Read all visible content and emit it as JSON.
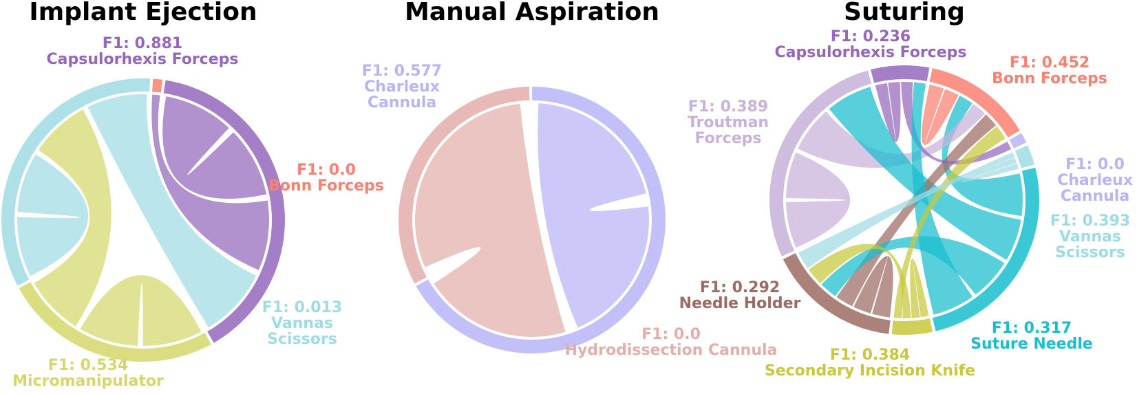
{
  "chart_data": [
    {
      "type": "chord",
      "title": "Implant Ejection",
      "nodes": [
        {
          "name": "Bonn Forceps",
          "f1": "F1: 0.0",
          "color": "#fa8072",
          "share": 0.011
        },
        {
          "name": "Capsulorhexis Forceps",
          "f1": "F1: 0.881",
          "color": "#9467bd",
          "share": 0.397
        },
        {
          "name": "Micromanipulator",
          "f1": "F1: 0.534",
          "color": "#d4d86a",
          "share": 0.253
        },
        {
          "name": "Vannas Scissors",
          "f1": "F1: 0.013",
          "color": "#9fdbe3",
          "share": 0.339
        }
      ],
      "links": [
        {
          "a": "Capsulorhexis Forceps",
          "b": "Capsulorhexis Forceps",
          "color": "#9467bd"
        },
        {
          "a": "Capsulorhexis Forceps",
          "b": "Bonn Forceps",
          "color": "#9467bd"
        },
        {
          "a": "Vannas Scissors",
          "b": "Vannas Scissors",
          "color": "#9fdbe3"
        },
        {
          "a": "Micromanipulator",
          "b": "Micromanipulator",
          "color": "#d4d86a"
        },
        {
          "a": "Micromanipulator",
          "b": "Vannas Scissors",
          "color": "#d4d86a"
        },
        {
          "a": "Vannas Scissors",
          "b": "Capsulorhexis Forceps",
          "color": "#9fdbe3"
        }
      ]
    },
    {
      "type": "chord",
      "title": "Manual Aspiration",
      "nodes": [
        {
          "name": "Charleux Cannula",
          "f1": "F1: 0.577",
          "color": "#b8b4f8",
          "share": 0.672
        },
        {
          "name": "Hydrodissection Cannula",
          "f1": "F1: 0.0",
          "color": "#e3aeab",
          "share": 0.328
        }
      ],
      "links": [
        {
          "a": "Charleux Cannula",
          "b": "Charleux Cannula",
          "color": "#b8b4f8"
        },
        {
          "a": "Hydrodissection Cannula",
          "b": "Charleux Cannula",
          "color": "#e3aeab"
        }
      ]
    },
    {
      "type": "chord",
      "title": "Suturing",
      "nodes": [
        {
          "name": "Bonn Forceps",
          "f1": "F1: 0.452",
          "color": "#fa8072",
          "share": 0.134
        },
        {
          "name": "Charleux Cannula",
          "f1": "F1: 0.0",
          "color": "#b8b4f8",
          "share": 0.013
        },
        {
          "name": "Vannas Scissors",
          "f1": "F1: 0.393",
          "color": "#9fdbe3",
          "share": 0.025
        },
        {
          "name": "Suture Needle",
          "f1": "F1: 0.317",
          "color": "#17becf",
          "share": 0.259
        },
        {
          "name": "Secondary Incision Knife",
          "f1": "F1: 0.384",
          "color": "#c8c83c",
          "share": 0.05
        },
        {
          "name": "Needle Holder",
          "f1": "F1: 0.292",
          "color": "#9c6b63",
          "share": 0.164
        },
        {
          "name": "Troutman Forceps",
          "f1": "F1: 0.389",
          "color": "#c7b2d9",
          "share": 0.283
        },
        {
          "name": "Capsulorhexis Forceps",
          "f1": "F1: 0.236",
          "color": "#9467bd",
          "share": 0.072
        }
      ],
      "links": [
        {
          "a": "Bonn Forceps",
          "b": "Bonn Forceps",
          "color": "#fa8072"
        },
        {
          "a": "Suture Needle",
          "b": "Bonn Forceps",
          "color": "#17becf"
        },
        {
          "a": "Troutman Forceps",
          "b": "Troutman Forceps",
          "color": "#c7b2d9"
        },
        {
          "a": "Troutman Forceps",
          "b": "Bonn Forceps",
          "color": "#c7b2d9"
        },
        {
          "a": "Suture Needle",
          "b": "Troutman Forceps",
          "color": "#17becf"
        },
        {
          "a": "Needle Holder",
          "b": "Needle Holder",
          "color": "#9c6b63"
        },
        {
          "a": "Needle Holder",
          "b": "Bonn Forceps",
          "color": "#9c6b63"
        },
        {
          "a": "Suture Needle",
          "b": "Needle Holder",
          "color": "#17becf"
        },
        {
          "a": "Capsulorhexis Forceps",
          "b": "Capsulorhexis Forceps",
          "color": "#9467bd"
        },
        {
          "a": "Capsulorhexis Forceps",
          "b": "Charleux Cannula",
          "color": "#9467bd"
        },
        {
          "a": "Suture Needle",
          "b": "Capsulorhexis Forceps",
          "color": "#17becf"
        },
        {
          "a": "Secondary Incision Knife",
          "b": "Secondary Incision Knife",
          "color": "#c8c83c"
        },
        {
          "a": "Secondary Incision Knife",
          "b": "Needle Holder",
          "color": "#c8c83c"
        },
        {
          "a": "Secondary Incision Knife",
          "b": "Bonn Forceps",
          "color": "#c8c83c"
        },
        {
          "a": "Vannas Scissors",
          "b": "Needle Holder",
          "color": "#9fdbe3"
        },
        {
          "a": "Vannas Scissors",
          "b": "Vannas Scissors",
          "color": "#9fdbe3"
        }
      ]
    }
  ]
}
